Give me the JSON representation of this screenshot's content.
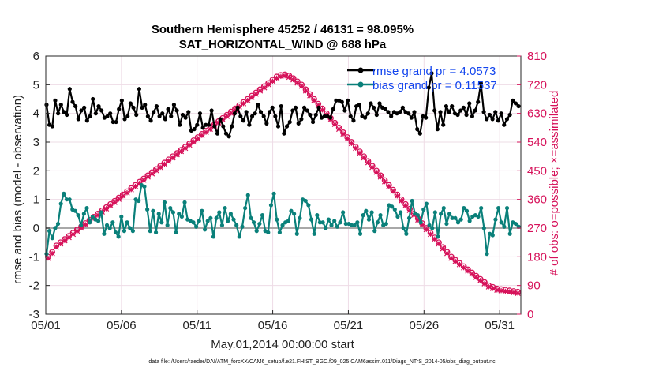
{
  "chart_data": {
    "type": "line",
    "title": "Southern Hemisphere 45252 / 46131 = 98.095%",
    "subtitle": "SAT_HORIZONTAL_WIND @ 688 hPa",
    "xlabel": "May.01,2014 00:00:00 start",
    "ylabel": "rmse and bias (model - observation)",
    "ylabel_right": "# of obs: o=possible; ×=assimilated",
    "footnote": "data file: /Users/raeder/DAI/ATM_forcXX/CAM6_setup/f.e21.FHIST_BGC.f09_025.CAM6assim.011/Diags_NTrS_2014-05/obs_diag_output.nc",
    "xlim": [
      0,
      31.4
    ],
    "ylim": [
      -3,
      6
    ],
    "ylim_right": [
      0,
      810
    ],
    "grid": true,
    "x_tick_labels": [
      "05/01",
      "05/06",
      "05/11",
      "05/16",
      "05/21",
      "05/26",
      "05/31"
    ],
    "x_tick_values": [
      0,
      5,
      10,
      15,
      20,
      25,
      30
    ],
    "y_tick_labels": [
      "-3",
      "-2",
      "-1",
      "0",
      "1",
      "2",
      "3",
      "4",
      "5",
      "6"
    ],
    "y_tick_values": [
      -3,
      -2,
      -1,
      0,
      1,
      2,
      3,
      4,
      5,
      6
    ],
    "y_right_tick_labels": [
      "0",
      "90",
      "180",
      "270",
      "360",
      "450",
      "540",
      "630",
      "720",
      "810"
    ],
    "y_right_tick_values": [
      0,
      90,
      180,
      270,
      360,
      450,
      540,
      630,
      720,
      810
    ],
    "legend_placement": "top-right",
    "series": [
      {
        "name": "rmse",
        "legend": "rmse grand pr = 4.0573",
        "axis": "left",
        "color": "#000000",
        "marker": "dot",
        "values": [
          4.3,
          3.6,
          3.55,
          4.45,
          4.0,
          4.3,
          4.05,
          3.95,
          4.85,
          4.4,
          4.25,
          3.8,
          4.1,
          4.2,
          3.75,
          3.9,
          4.5,
          4.0,
          4.25,
          4.1,
          3.85,
          3.9,
          4.0,
          3.7,
          3.7,
          4.15,
          4.45,
          3.8,
          3.9,
          4.35,
          4.2,
          3.95,
          4.85,
          4.2,
          4.3,
          3.9,
          3.75,
          4.05,
          4.25,
          3.9,
          4.0,
          3.8,
          4.15,
          3.9,
          4.3,
          4.1,
          3.6,
          3.95,
          3.85,
          4.05,
          3.4,
          3.45,
          3.6,
          4.0,
          3.5,
          3.6,
          3.6,
          4.1,
          3.55,
          3.3,
          3.8,
          3.55,
          3.3,
          3.2,
          3.55,
          4.0,
          4.2,
          3.9,
          3.75,
          4.05,
          3.6,
          3.9,
          4.0,
          4.3,
          4.05,
          3.9,
          3.65,
          4.05,
          4.2,
          3.9,
          3.55,
          4.25,
          3.3,
          3.55,
          3.7,
          4.1,
          4.2,
          3.65,
          3.8,
          4.2,
          4.1,
          3.95,
          3.7,
          3.95,
          4.2,
          3.85,
          3.9,
          3.9,
          3.85,
          4.15,
          4.45,
          4.45,
          4.4,
          4.1,
          4.45,
          3.9,
          3.75,
          4.25,
          4.3,
          3.9,
          3.85,
          4.0,
          4.35,
          4.2,
          3.95,
          4.35,
          4.2,
          4.15,
          4.05,
          3.9,
          4.05,
          4.0,
          4.05,
          4.2,
          4.05,
          4.0,
          3.85,
          4.05,
          3.45,
          3.3,
          3.9,
          3.85,
          4.9,
          5.4,
          4.1,
          3.45,
          4.05,
          3.6,
          4.25,
          4.05,
          4.25,
          4.0,
          3.95,
          4.1,
          4.2,
          3.95,
          4.35,
          3.9,
          4.1,
          4.4,
          5.05,
          4.05,
          3.8,
          3.95,
          3.8,
          4.05,
          3.75,
          4.0,
          3.6,
          3.8,
          3.95,
          4.45,
          4.35,
          4.25
        ]
      },
      {
        "name": "bias",
        "legend": "bias grand pr = 0.11537",
        "axis": "left",
        "color": "#0a807a",
        "marker": "dot",
        "values": [
          -0.9,
          -0.1,
          -0.35,
          0.0,
          0.15,
          0.85,
          1.2,
          1.0,
          1.0,
          0.65,
          0.6,
          0.45,
          0.1,
          0.5,
          0.7,
          0.2,
          0.4,
          0.3,
          0.25,
          0.55,
          -0.2,
          0.1,
          0.0,
          0.2,
          -0.15,
          -0.3,
          0.4,
          -0.1,
          0.2,
          0.0,
          -0.1,
          1.0,
          0.95,
          1.5,
          1.45,
          0.65,
          -0.1,
          0.6,
          -0.15,
          0.5,
          0.2,
          0.9,
          0.1,
          0.7,
          0.55,
          -0.15,
          0.5,
          0.4,
          0.9,
          0.3,
          0.25,
          0.2,
          0.05,
          0.25,
          0.6,
          -0.05,
          0.25,
          0.35,
          -0.3,
          0.35,
          0.55,
          0.1,
          0.7,
          0.25,
          0.5,
          0.3,
          0.1,
          -0.3,
          0.05,
          0.7,
          1.15,
          0.35,
          0.2,
          -0.1,
          0.15,
          0.45,
          -0.1,
          -0.15,
          0.8,
          1.2,
          0.3,
          -0.15,
          0.1,
          0.2,
          0.25,
          0.6,
          0.5,
          -0.2,
          0.35,
          1.0,
          0.95,
          0.8,
          0.3,
          -0.2,
          0.45,
          0.2,
          0.2,
          0.0,
          0.3,
          0.1,
          0.25,
          0.05,
          0.2,
          0.55,
          0.15,
          0.15,
          0.1,
          0.1,
          0.2,
          -0.2,
          0.45,
          0.6,
          0.3,
          0.55,
          -0.1,
          0.2,
          0.45,
          0.1,
          0.15,
          0.8,
          0.75,
          0.65,
          0.4,
          0.55,
          0.0,
          -0.2,
          0.35,
          0.95,
          0.5,
          0.45,
          0.2,
          0.65,
          0.85,
          0.1,
          0.0,
          0.55,
          -0.3,
          0.5,
          0.7,
          0.15,
          0.5,
          0.35,
          0.35,
          0.2,
          0.3,
          0.7,
          0.6,
          0.25,
          0.4,
          0.45,
          0.4,
          0.7,
          0.0,
          -0.9,
          -0.2,
          -0.25,
          0.3,
          0.7,
          0.2,
          0.05,
          0.7,
          -0.2,
          0.2,
          0.15,
          0.05
        ]
      },
      {
        "name": "obs possible",
        "axis": "right",
        "color": "#d6125a",
        "marker": "circle",
        "values": [
          180,
          195,
          215,
          225,
          235,
          245,
          255,
          265,
          275,
          285,
          295,
          305,
          315,
          325,
          335,
          345,
          355,
          365,
          375,
          385,
          395,
          405,
          415,
          425,
          435,
          445,
          455,
          465,
          475,
          485,
          495,
          505,
          515,
          525,
          535,
          545,
          555,
          565,
          575,
          585,
          595,
          605,
          615,
          625,
          635,
          645,
          655,
          665,
          675,
          685,
          695,
          705,
          715,
          725,
          735,
          745,
          750,
          752,
          748,
          740,
          730,
          720,
          705,
          690,
          675,
          660,
          645,
          630,
          615,
          600,
          585,
          570,
          555,
          540,
          525,
          510,
          495,
          480,
          465,
          450,
          435,
          420,
          405,
          390,
          375,
          360,
          345,
          330,
          315,
          300,
          285,
          270,
          255,
          240,
          225,
          210,
          195,
          180,
          170,
          160,
          150,
          140,
          130,
          120,
          110,
          100,
          90,
          85,
          80,
          78,
          76,
          74,
          72,
          70
        ]
      },
      {
        "name": "obs assimilated",
        "axis": "right",
        "color": "#d6125a",
        "marker": "cross",
        "values": [
          176,
          191,
          211,
          221,
          231,
          241,
          251,
          261,
          271,
          281,
          291,
          301,
          311,
          321,
          331,
          341,
          351,
          361,
          371,
          381,
          391,
          401,
          411,
          421,
          431,
          441,
          451,
          461,
          471,
          481,
          491,
          501,
          511,
          521,
          531,
          541,
          551,
          561,
          571,
          581,
          591,
          601,
          611,
          621,
          631,
          641,
          651,
          661,
          671,
          681,
          691,
          701,
          711,
          721,
          731,
          741,
          746,
          748,
          744,
          736,
          726,
          716,
          701,
          686,
          671,
          656,
          641,
          626,
          611,
          596,
          581,
          566,
          551,
          536,
          521,
          506,
          491,
          476,
          461,
          446,
          431,
          416,
          401,
          386,
          371,
          356,
          341,
          326,
          311,
          296,
          281,
          266,
          251,
          236,
          221,
          206,
          191,
          176,
          166,
          156,
          146,
          136,
          126,
          116,
          106,
          96,
          86,
          81,
          76,
          74,
          72,
          70,
          68,
          66
        ]
      }
    ]
  }
}
